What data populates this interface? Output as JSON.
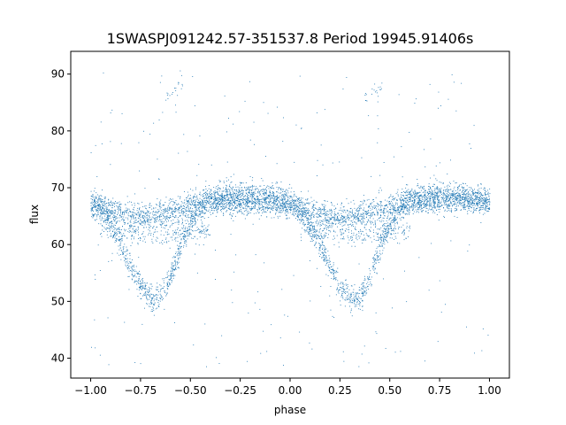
{
  "chart_data": {
    "type": "scatter",
    "title": "1SWASPJ091242.57-351537.8 Period 19945.91406s",
    "xlabel": "phase",
    "ylabel": "flux",
    "xlim": [
      -1.1,
      1.1
    ],
    "ylim": [
      36.5,
      94.0
    ],
    "xticks": [
      -1.0,
      -0.75,
      -0.5,
      -0.25,
      0.0,
      0.25,
      0.5,
      0.75,
      1.0
    ],
    "xtick_labels": [
      "−1.00",
      "−0.75",
      "−0.50",
      "−0.25",
      "0.00",
      "0.25",
      "0.50",
      "0.75",
      "1.00"
    ],
    "yticks": [
      40,
      50,
      60,
      70,
      80,
      90
    ],
    "ytick_labels": [
      "40",
      "50",
      "60",
      "70",
      "80",
      "90"
    ],
    "grid": false,
    "legend": "none",
    "marker_color": "#1f77b4",
    "series": [
      {
        "values_note_free": true,
        "upper_branch": [
          [
            -1.0,
            67.5
          ],
          [
            -0.9,
            66.0
          ],
          [
            -0.8,
            65.0
          ],
          [
            -0.7,
            64.8
          ],
          [
            -0.6,
            65.6
          ],
          [
            -0.5,
            66.8
          ],
          [
            -0.4,
            68.0
          ],
          [
            -0.3,
            68.8
          ],
          [
            -0.2,
            69.0
          ],
          [
            -0.1,
            68.5
          ],
          [
            0.0,
            67.2
          ],
          [
            0.1,
            65.8
          ],
          [
            0.2,
            65.0
          ],
          [
            0.3,
            64.8
          ],
          [
            0.4,
            65.6
          ],
          [
            0.5,
            66.8
          ],
          [
            0.6,
            68.0
          ],
          [
            0.7,
            68.8
          ],
          [
            0.8,
            69.0
          ],
          [
            0.9,
            68.5
          ],
          [
            1.0,
            67.5
          ]
        ],
        "lower_branch": [
          [
            -1.0,
            67.5
          ],
          [
            -0.95,
            66.0
          ],
          [
            -0.9,
            63.5
          ],
          [
            -0.85,
            60.0
          ],
          [
            -0.8,
            56.0
          ],
          [
            -0.75,
            52.5
          ],
          [
            -0.7,
            50.5
          ],
          [
            -0.65,
            51.0
          ],
          [
            -0.6,
            54.5
          ],
          [
            -0.55,
            59.5
          ],
          [
            -0.5,
            64.0
          ],
          [
            -0.45,
            66.5
          ],
          [
            -0.4,
            67.5
          ],
          [
            0.0,
            67.2
          ],
          [
            0.05,
            66.0
          ],
          [
            0.1,
            63.5
          ],
          [
            0.15,
            60.0
          ],
          [
            0.2,
            56.0
          ],
          [
            0.25,
            52.5
          ],
          [
            0.3,
            50.5
          ],
          [
            0.35,
            51.0
          ],
          [
            0.4,
            54.5
          ],
          [
            0.45,
            59.5
          ],
          [
            0.5,
            64.0
          ],
          [
            0.55,
            66.5
          ],
          [
            0.6,
            67.5
          ],
          [
            1.0,
            67.5
          ]
        ],
        "secondary_band": [
          [
            -0.95,
            63.0
          ],
          [
            -0.8,
            62.0
          ],
          [
            -0.7,
            61.8
          ],
          [
            -0.6,
            62.0
          ],
          [
            -0.5,
            62.5
          ],
          [
            0.05,
            63.0
          ],
          [
            0.2,
            62.0
          ],
          [
            0.3,
            61.8
          ],
          [
            0.4,
            62.0
          ],
          [
            0.5,
            62.5
          ]
        ],
        "outlier_cluster": [
          [
            -0.62,
            86.0
          ],
          [
            -0.58,
            87.0
          ],
          [
            -0.55,
            88.0
          ],
          [
            0.38,
            86.0
          ],
          [
            0.42,
            87.0
          ],
          [
            0.45,
            88.0
          ]
        ]
      }
    ]
  }
}
